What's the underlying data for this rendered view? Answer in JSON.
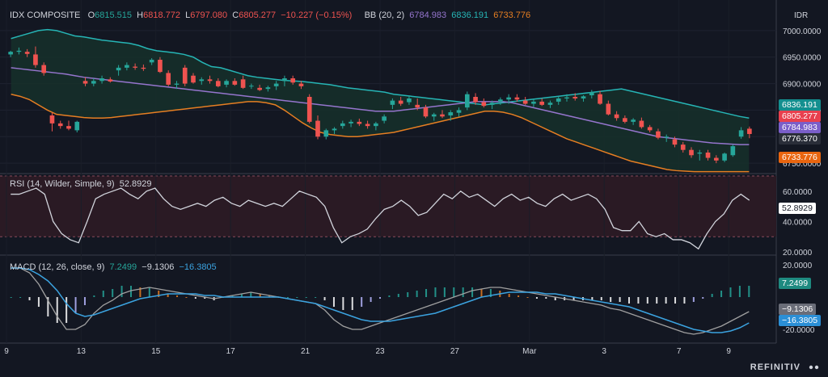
{
  "header": {
    "symbol": "IDX COMPOSITE",
    "open_label": "O",
    "open": "6815.515",
    "high_label": "H",
    "high": "6818.772",
    "low_label": "L",
    "low": "6797.080",
    "close_label": "C",
    "close": "6805.277",
    "change": "−10.227 (−0.15%)",
    "bb_label": "BB (20, 2)",
    "bb_mid": "6784.983",
    "bb_upper": "6836.191",
    "bb_lower": "6733.776",
    "currency": "IDR"
  },
  "rsi_header": {
    "label": "RSI (14, Wilder, Simple, 9)",
    "value": "52.8929"
  },
  "macd_header": {
    "label": "MACD (12, 26, close, 9)",
    "hist": "7.2499",
    "macd": "−9.1306",
    "signal": "−16.3805"
  },
  "price_labels": {
    "upper": "6836.191",
    "close": "6805.277",
    "mid": "6784.983",
    "other": "6776.370",
    "lower": "6733.776"
  },
  "rsi_label": "52.8929",
  "macd_labels": {
    "hist": "7.2499",
    "macd": "−9.1306",
    "signal": "−16.3805"
  },
  "brand": "REFINITIV",
  "colors": {
    "up": "#26a69a",
    "down": "#ef5350",
    "bb_upper": "#26b5b5",
    "bb_mid": "#9575cd",
    "bb_lower": "#e67e22",
    "rsi_line": "#d1d4dc",
    "macd_line": "#a0a0a0",
    "signal_line": "#3ba3e0"
  },
  "chart_data": [
    {
      "type": "candlestick",
      "title": "IDX COMPOSITE",
      "ylim": [
        6738,
        7012
      ],
      "y_ticks": [
        "7000.0000",
        "6950.0000",
        "6900.0000",
        "6850.0000",
        "6800.0000",
        "6750.0000"
      ],
      "x_ticks": [
        "9",
        "13",
        "15",
        "17",
        "21",
        "23",
        "27",
        "Mar",
        "3",
        "7",
        "9"
      ],
      "candles": [
        [
          6955,
          6962,
          6950,
          6960
        ],
        [
          6960,
          6968,
          6955,
          6962
        ],
        [
          6960,
          6965,
          6950,
          6956
        ],
        [
          6955,
          6970,
          6930,
          6935
        ],
        [
          6935,
          6940,
          6915,
          6920
        ],
        [
          6840,
          6845,
          6810,
          6825
        ],
        [
          6825,
          6830,
          6815,
          6820
        ],
        [
          6820,
          6830,
          6812,
          6815
        ],
        [
          6812,
          6830,
          6808,
          6828
        ],
        [
          6905,
          6912,
          6895,
          6900
        ],
        [
          6900,
          6910,
          6895,
          6905
        ],
        [
          6905,
          6915,
          6900,
          6910
        ],
        [
          6908,
          6912,
          6902,
          6904
        ],
        [
          6925,
          6935,
          6915,
          6930
        ],
        [
          6930,
          6940,
          6925,
          6935
        ],
        [
          6932,
          6938,
          6926,
          6930
        ],
        [
          6930,
          6936,
          6924,
          6928
        ],
        [
          6940,
          6948,
          6935,
          6945
        ],
        [
          6945,
          6950,
          6920,
          6922
        ],
        [
          6920,
          6925,
          6895,
          6898
        ],
        [
          6898,
          6905,
          6890,
          6900
        ],
        [
          6930,
          6935,
          6895,
          6900
        ],
        [
          6915,
          6920,
          6900,
          6902
        ],
        [
          6905,
          6912,
          6898,
          6908
        ],
        [
          6908,
          6915,
          6900,
          6905
        ],
        [
          6905,
          6910,
          6893,
          6895
        ],
        [
          6898,
          6908,
          6893,
          6905
        ],
        [
          6905,
          6910,
          6896,
          6898
        ],
        [
          6908,
          6915,
          6890,
          6892
        ],
        [
          6895,
          6900,
          6890,
          6896
        ],
        [
          6892,
          6898,
          6886,
          6888
        ],
        [
          6890,
          6896,
          6885,
          6893
        ],
        [
          6895,
          6905,
          6888,
          6900
        ],
        [
          6905,
          6915,
          6895,
          6910
        ],
        [
          6910,
          6915,
          6898,
          6902
        ],
        [
          6900,
          6905,
          6890,
          6895
        ],
        [
          6875,
          6880,
          6825,
          6828
        ],
        [
          6830,
          6840,
          6795,
          6800
        ],
        [
          6800,
          6815,
          6795,
          6812
        ],
        [
          6812,
          6818,
          6805,
          6815
        ],
        [
          6820,
          6830,
          6815,
          6825
        ],
        [
          6825,
          6832,
          6818,
          6828
        ],
        [
          6828,
          6834,
          6820,
          6824
        ],
        [
          6824,
          6830,
          6815,
          6820
        ],
        [
          6820,
          6828,
          6812,
          6825
        ],
        [
          6830,
          6842,
          6825,
          6838
        ],
        [
          6860,
          6872,
          6852,
          6868
        ],
        [
          6868,
          6875,
          6858,
          6862
        ],
        [
          6865,
          6878,
          6860,
          6872
        ],
        [
          6860,
          6872,
          6850,
          6855
        ],
        [
          6855,
          6860,
          6835,
          6838
        ],
        [
          6838,
          6845,
          6830,
          6842
        ],
        [
          6842,
          6850,
          6835,
          6838
        ],
        [
          6840,
          6850,
          6830,
          6846
        ],
        [
          6845,
          6855,
          6838,
          6850
        ],
        [
          6855,
          6885,
          6850,
          6880
        ],
        [
          6875,
          6882,
          6860,
          6865
        ],
        [
          6865,
          6872,
          6855,
          6858
        ],
        [
          6860,
          6868,
          6852,
          6864
        ],
        [
          6866,
          6874,
          6860,
          6870
        ],
        [
          6870,
          6880,
          6862,
          6874
        ],
        [
          6874,
          6880,
          6866,
          6870
        ],
        [
          6868,
          6875,
          6860,
          6862
        ],
        [
          6862,
          6870,
          6856,
          6866
        ],
        [
          6866,
          6872,
          6858,
          6860
        ],
        [
          6860,
          6868,
          6854,
          6864
        ],
        [
          6866,
          6876,
          6860,
          6872
        ],
        [
          6872,
          6880,
          6866,
          6874
        ],
        [
          6875,
          6882,
          6868,
          6872
        ],
        [
          6872,
          6878,
          6866,
          6876
        ],
        [
          6878,
          6888,
          6872,
          6884
        ],
        [
          6880,
          6886,
          6860,
          6862
        ],
        [
          6862,
          6868,
          6840,
          6842
        ],
        [
          6842,
          6848,
          6830,
          6835
        ],
        [
          6835,
          6840,
          6825,
          6828
        ],
        [
          6828,
          6835,
          6822,
          6832
        ],
        [
          6830,
          6836,
          6815,
          6818
        ],
        [
          6818,
          6822,
          6808,
          6812
        ],
        [
          6810,
          6815,
          6795,
          6798
        ],
        [
          6798,
          6804,
          6790,
          6800
        ],
        [
          6795,
          6800,
          6780,
          6785
        ],
        [
          6785,
          6790,
          6770,
          6775
        ],
        [
          6775,
          6780,
          6760,
          6765
        ],
        [
          6768,
          6775,
          6755,
          6770
        ],
        [
          6770,
          6775,
          6755,
          6760
        ],
        [
          6760,
          6765,
          6750,
          6755
        ],
        [
          6755,
          6770,
          6752,
          6768
        ],
        [
          6765,
          6785,
          6762,
          6782
        ],
        [
          6800,
          6818,
          6796,
          6812
        ],
        [
          6815,
          6819,
          6797,
          6805
        ]
      ],
      "bb_upper": [
        6985,
        6990,
        6995,
        7000,
        7002,
        7000,
        6995,
        6990,
        6988,
        6985,
        6982,
        6980,
        6978,
        6976,
        6972,
        6966,
        6962,
        6960,
        6958,
        6955,
        6950,
        6940,
        6932,
        6930,
        6925,
        6920,
        6915,
        6912,
        6910,
        6908,
        6906,
        6905,
        6904,
        6902,
        6900,
        6898,
        6895,
        6892,
        6890,
        6888,
        6886,
        6884,
        6880,
        6878,
        6876,
        6874,
        6872,
        6870,
        6868,
        6866,
        6864,
        6862,
        6860,
        6862,
        6864,
        6866,
        6868,
        6870,
        6872,
        6874,
        6876,
        6878,
        6880,
        6882,
        6884,
        6886,
        6888,
        6890,
        6886,
        6882,
        6878,
        6874,
        6870,
        6866,
        6862,
        6858,
        6854,
        6850,
        6846,
        6842,
        6838,
        6835
      ],
      "bb_mid": [
        6930,
        6928,
        6926,
        6924,
        6922,
        6920,
        6918,
        6915,
        6912,
        6910,
        6908,
        6906,
        6904,
        6902,
        6900,
        6898,
        6896,
        6894,
        6892,
        6890,
        6888,
        6886,
        6884,
        6882,
        6880,
        6878,
        6876,
        6874,
        6872,
        6870,
        6868,
        6866,
        6864,
        6862,
        6860,
        6858,
        6856,
        6854,
        6852,
        6850,
        6848,
        6848,
        6848,
        6850,
        6852,
        6854,
        6856,
        6858,
        6860,
        6862,
        6864,
        6866,
        6866,
        6866,
        6866,
        6864,
        6860,
        6856,
        6852,
        6848,
        6844,
        6840,
        6836,
        6832,
        6828,
        6824,
        6820,
        6816,
        6812,
        6808,
        6804,
        6800,
        6798,
        6796,
        6794,
        6792,
        6790,
        6788,
        6787,
        6786,
        6785,
        6785
      ],
      "bb_lower": [
        6880,
        6876,
        6870,
        6860,
        6850,
        6842,
        6840,
        6838,
        6836,
        6835,
        6835,
        6836,
        6838,
        6840,
        6842,
        6844,
        6846,
        6848,
        6850,
        6852,
        6854,
        6856,
        6858,
        6860,
        6862,
        6864,
        6866,
        6866,
        6864,
        6860,
        6850,
        6838,
        6826,
        6816,
        6808,
        6804,
        6802,
        6800,
        6800,
        6802,
        6804,
        6806,
        6808,
        6812,
        6816,
        6820,
        6824,
        6828,
        6832,
        6836,
        6840,
        6844,
        6848,
        6848,
        6846,
        6842,
        6836,
        6828,
        6820,
        6812,
        6804,
        6796,
        6790,
        6784,
        6778,
        6772,
        6766,
        6760,
        6754,
        6750,
        6746,
        6742,
        6738,
        6736,
        6735,
        6734,
        6734,
        6734,
        6734,
        6734,
        6734,
        6734
      ]
    },
    {
      "type": "line",
      "title": "RSI (14, Wilder, Simple, 9)",
      "ylim": [
        20,
        70
      ],
      "y_ticks": [
        "60.0000",
        "40.0000",
        "20.0000"
      ],
      "band": [
        30,
        70
      ],
      "values": [
        58,
        58,
        60,
        62,
        58,
        40,
        32,
        28,
        26,
        40,
        55,
        58,
        60,
        62,
        58,
        55,
        60,
        62,
        55,
        50,
        48,
        50,
        52,
        50,
        54,
        56,
        52,
        50,
        54,
        52,
        50,
        52,
        50,
        55,
        60,
        58,
        56,
        50,
        36,
        26,
        30,
        32,
        35,
        42,
        48,
        50,
        54,
        50,
        44,
        46,
        52,
        58,
        55,
        60,
        56,
        58,
        54,
        50,
        55,
        58,
        54,
        56,
        52,
        50,
        55,
        58,
        54,
        56,
        58,
        55,
        48,
        36,
        34,
        34,
        40,
        32,
        30,
        32,
        28,
        28,
        26,
        22,
        32,
        40,
        45,
        54,
        58,
        54
      ]
    },
    {
      "type": "line",
      "title": "MACD (12, 26, close, 9)",
      "ylim": [
        -26,
        24
      ],
      "y_ticks": [
        "20.0000",
        "-20.0000"
      ],
      "macd": [
        18,
        18,
        15,
        8,
        -2,
        -12,
        -20,
        -20,
        -17,
        -10,
        -5,
        -2,
        2,
        4,
        5,
        6,
        5,
        4,
        3,
        2,
        1,
        0,
        -1,
        0,
        1,
        2,
        3,
        2,
        1,
        0,
        -1,
        -2,
        -3,
        -4,
        -8,
        -14,
        -18,
        -20,
        -20,
        -18,
        -16,
        -14,
        -12,
        -10,
        -8,
        -6,
        -4,
        -2,
        0,
        2,
        4,
        5,
        6,
        6,
        5,
        4,
        3,
        2,
        1,
        0,
        -1,
        -2,
        -3,
        -4,
        -5,
        -7,
        -8,
        -10,
        -12,
        -14,
        -16,
        -18,
        -20,
        -22,
        -23,
        -22,
        -20,
        -18,
        -15,
        -12,
        -9
      ],
      "signal": [
        18,
        18,
        17,
        14,
        10,
        4,
        -4,
        -10,
        -12,
        -11,
        -9,
        -7,
        -5,
        -3,
        -1,
        0,
        1,
        2,
        2,
        2,
        2,
        1,
        1,
        0,
        0,
        0,
        0,
        0,
        0,
        0,
        -1,
        -2,
        -3,
        -4,
        -6,
        -8,
        -10,
        -12,
        -14,
        -15,
        -15,
        -15,
        -14,
        -13,
        -12,
        -11,
        -10,
        -8,
        -6,
        -4,
        -2,
        0,
        1,
        2,
        3,
        3,
        3,
        3,
        2,
        2,
        1,
        0,
        -1,
        -2,
        -3,
        -4,
        -5,
        -6,
        -8,
        -10,
        -12,
        -14,
        -16,
        -18,
        -20,
        -21,
        -22,
        -22,
        -21,
        -19,
        -16
      ]
    }
  ]
}
